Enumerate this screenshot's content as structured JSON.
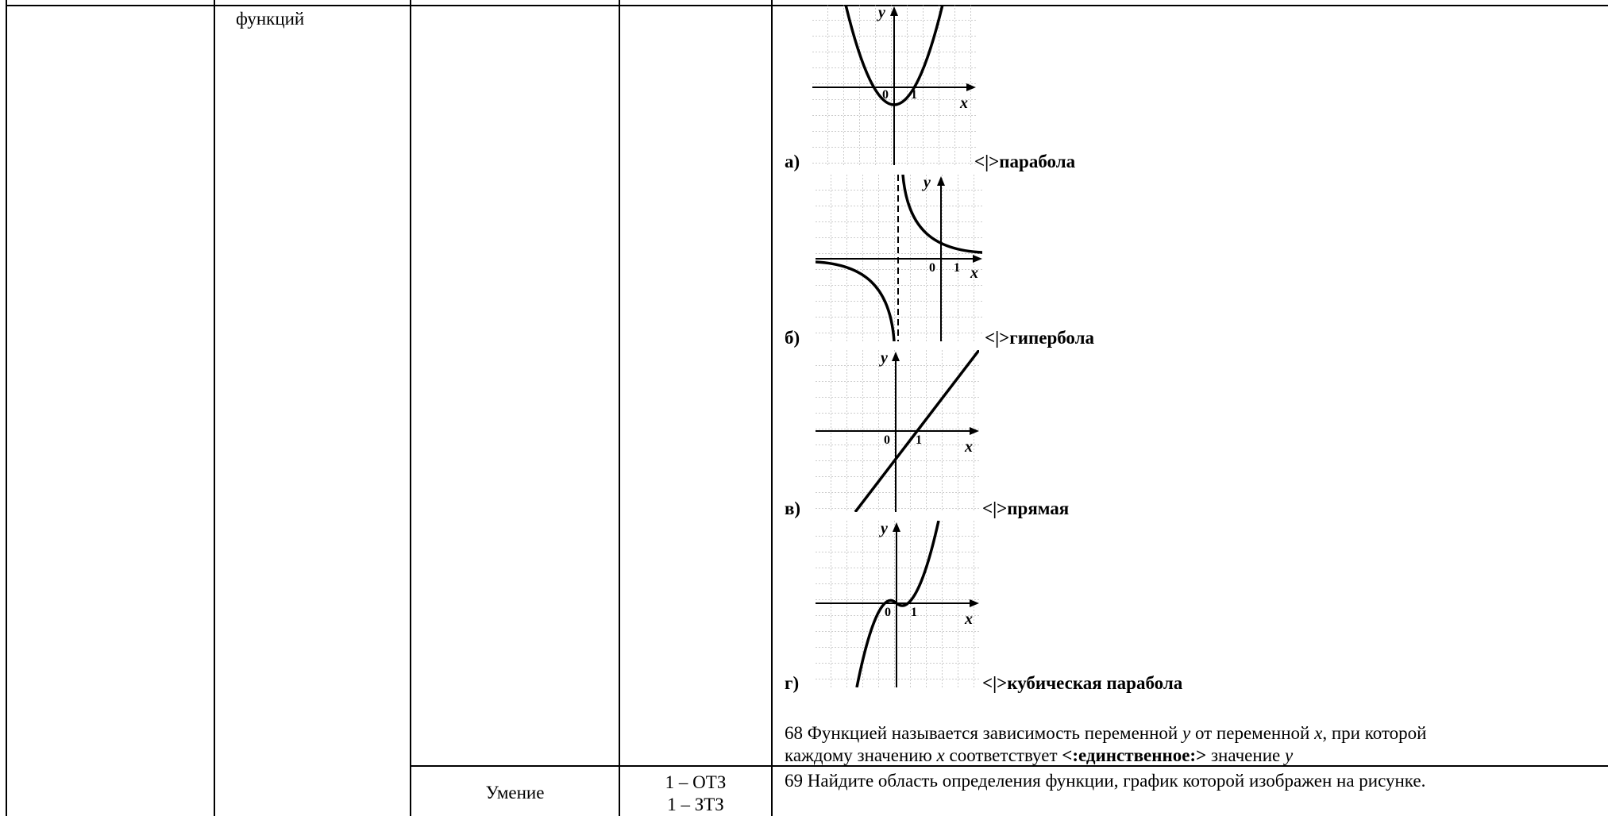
{
  "col_left": {
    "text": "функций"
  },
  "questions": [
    {
      "letter": "а)",
      "sep": "<|>",
      "answer": "парабола"
    },
    {
      "letter": "б)",
      "sep": "<|>",
      "answer": "гипербола"
    },
    {
      "letter": "в)",
      "sep": "<|>",
      "answer": "прямая"
    },
    {
      "letter": "г)",
      "sep": "<|>",
      "answer": "кубическая парабола"
    }
  ],
  "axis_labels": {
    "x": "x",
    "y": "y",
    "zero": "0",
    "one": "1"
  },
  "q68": {
    "line1_a": "68 Функцией называется зависимость переменной ",
    "line1_y": "y",
    "line1_b": " от переменной ",
    "line1_x": "x",
    "line1_c": ", при которой",
    "line2_a": "каждому значению ",
    "line2_x": "x",
    "line2_b": " соответствует ",
    "line2_bold": "<:единственное:>",
    "line2_c": " значение ",
    "line2_y": "y"
  },
  "row2": {
    "skill": "Умение",
    "level_1": "1 – ОТЗ",
    "level_2": "1 – ЗТЗ",
    "q69": "69 Найдите область определения функции, график которой изображен на рисунке."
  }
}
